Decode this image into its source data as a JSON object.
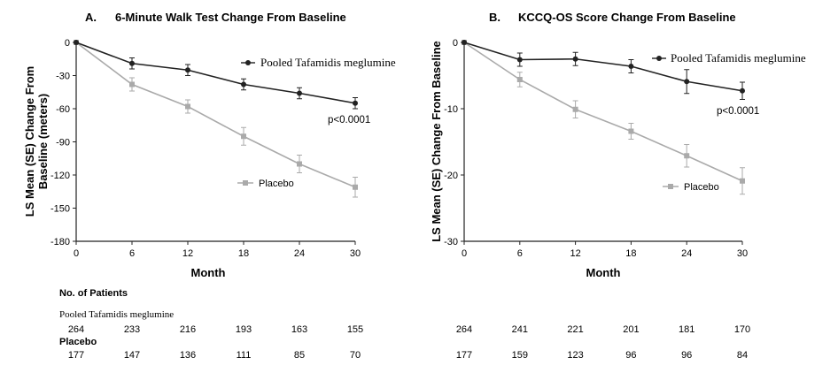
{
  "chart_data": [
    {
      "type": "line",
      "panel_label": "A.",
      "title": "6-Minute Walk Test  Change From Baseline",
      "xlabel": "Month",
      "ylabel": "LS Mean (SE) Change From Baseline (meters)",
      "x": [
        0,
        6,
        12,
        18,
        24,
        30
      ],
      "xlim": [
        0,
        30
      ],
      "ylim": [
        -180,
        0
      ],
      "yticks": [
        0,
        -30,
        -60,
        -90,
        -120,
        -150,
        -180
      ],
      "series": [
        {
          "name": "Pooled Tafamidis meglumine",
          "color": "#222222",
          "values": [
            0,
            -19,
            -25,
            -38,
            -46,
            -55
          ],
          "se": [
            0,
            5,
            5,
            5,
            5,
            5
          ]
        },
        {
          "name": "Placebo",
          "color": "#aaaaaa",
          "values": [
            0,
            -38,
            -58,
            -85,
            -110,
            -131
          ],
          "se": [
            0,
            6,
            6,
            8,
            8,
            9
          ]
        }
      ],
      "annotation": "p<0.0001",
      "patients": {
        "Pooled Tafamidis meglumine": [
          "264",
          "233",
          "216",
          "193",
          "163",
          "155"
        ],
        "Placebo": [
          "177",
          "147",
          "136",
          "111",
          "85",
          "70"
        ]
      }
    },
    {
      "type": "line",
      "panel_label": "B.",
      "title": "KCCQ-OS Score Change From Baseline",
      "xlabel": "Month",
      "ylabel": "LS Mean (SE) Change From Baseline",
      "x": [
        0,
        6,
        12,
        18,
        24,
        30
      ],
      "xlim": [
        0,
        30
      ],
      "ylim": [
        -30,
        0
      ],
      "yticks": [
        0,
        -10,
        -20,
        -30
      ],
      "series": [
        {
          "name": "Pooled Tafamidis meglumine",
          "color": "#222222",
          "values": [
            0,
            -2.6,
            -2.5,
            -3.6,
            -5.9,
            -7.3
          ],
          "se": [
            0,
            1.0,
            1.0,
            1.0,
            1.8,
            1.3
          ]
        },
        {
          "name": "Placebo",
          "color": "#aaaaaa",
          "values": [
            0,
            -5.6,
            -10.1,
            -13.4,
            -17.1,
            -20.9
          ],
          "se": [
            0,
            1.1,
            1.3,
            1.2,
            1.7,
            2.0
          ]
        }
      ],
      "annotation": "p<0.0001",
      "patients": {
        "Pooled Tafamidis meglumine": [
          "264",
          "241",
          "221",
          "201",
          "181",
          "170"
        ],
        "Placebo": [
          "177",
          "159",
          "123",
          "96",
          "96",
          "84"
        ]
      }
    }
  ],
  "patients_header": "No. of Patients",
  "patients_groups": [
    "Pooled Tafamidis meglumine",
    "Placebo"
  ]
}
